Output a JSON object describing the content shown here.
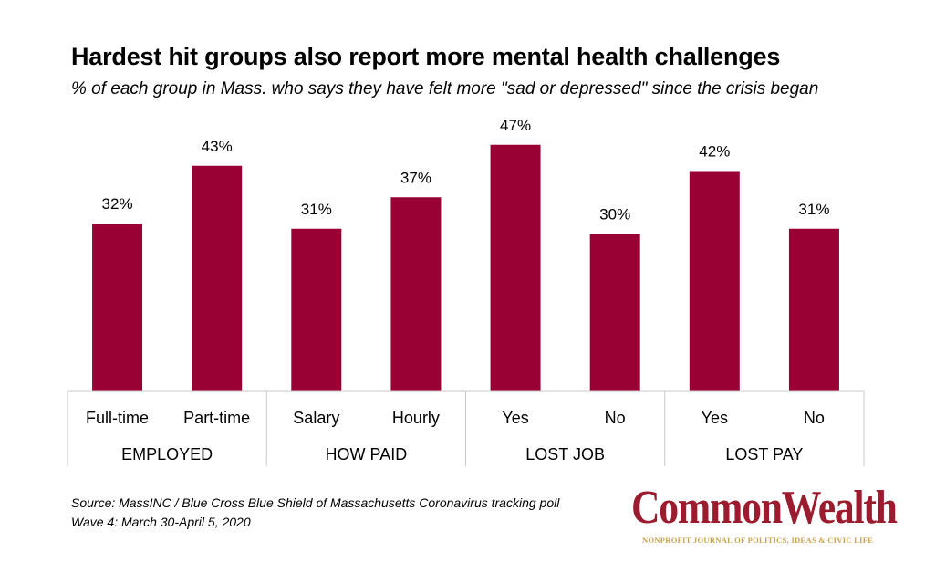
{
  "chart_data": {
    "type": "bar",
    "title": "Hardest hit groups also report more mental health challenges",
    "subtitle": "% of each group in Mass. who says they have felt more \"sad or depressed\" since the crisis began",
    "categories": [
      "Full-time",
      "Part-time",
      "Salary",
      "Hourly",
      "Yes",
      "No",
      "Yes",
      "No"
    ],
    "values": [
      32,
      43,
      31,
      37,
      47,
      30,
      42,
      31
    ],
    "data_labels": [
      "32%",
      "43%",
      "31%",
      "37%",
      "47%",
      "30%",
      "42%",
      "31%"
    ],
    "groups": [
      {
        "label": "EMPLOYED",
        "categories": [
          "Full-time",
          "Part-time"
        ]
      },
      {
        "label": "HOW PAID",
        "categories": [
          "Salary",
          "Hourly"
        ]
      },
      {
        "label": "LOST JOB",
        "categories": [
          "Yes",
          "No"
        ]
      },
      {
        "label": "LOST PAY",
        "categories": [
          "Yes",
          "No"
        ]
      }
    ],
    "ylim": [
      0,
      50
    ],
    "grid": false,
    "bar_color": "#990033"
  },
  "source": {
    "line1": "Source: MassINC / Blue Cross Blue Shield of Massachusetts Coronavirus tracking poll",
    "line2": "Wave 4: March 30-April 5, 2020"
  },
  "logo": {
    "name": "CommonWealth",
    "tagline": "NONPROFIT JOURNAL OF POLITICS, IDEAS & CIVIC LIFE",
    "color": "#9b1c2e",
    "tagline_color": "#c8a24a"
  }
}
